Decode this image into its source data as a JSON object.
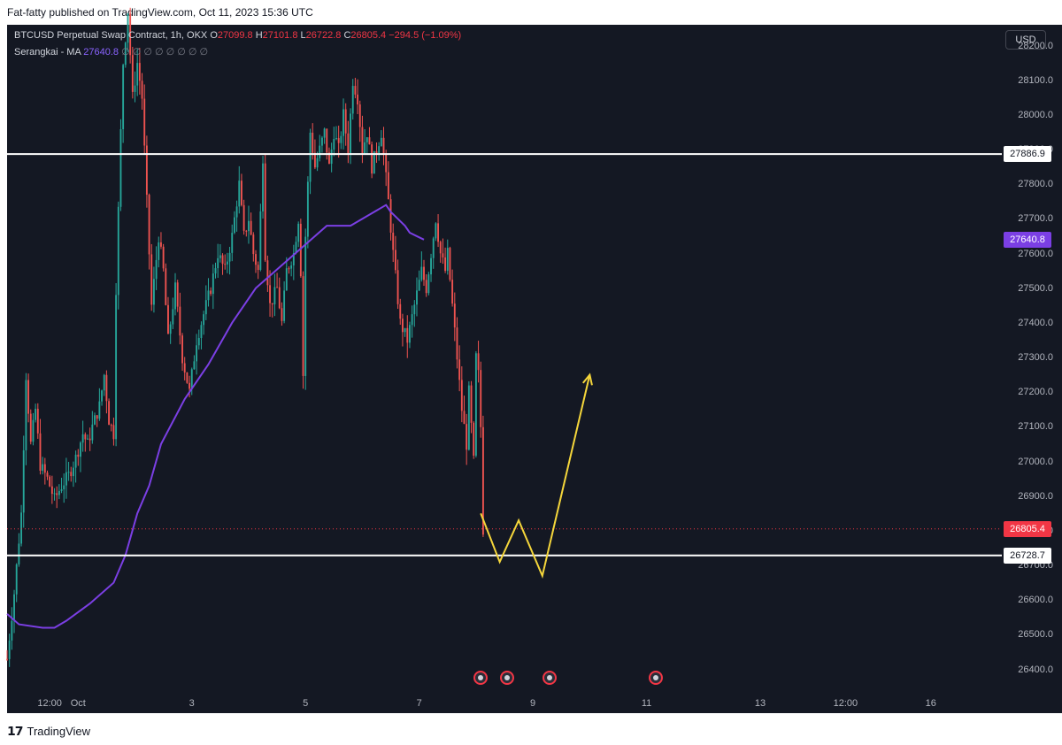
{
  "header": {
    "publish_line": "Fat-fatty published on TradingView.com, Oct 11, 2023 15:36 UTC"
  },
  "legend": {
    "symbol": "BTCUSD Perpetual Swap Contract, 1h, OKX",
    "o_label": "O",
    "o_value": "27099.8",
    "h_label": "H",
    "h_value": "27101.8",
    "l_label": "L",
    "l_value": "26722.8",
    "c_label": "C",
    "c_value": "26805.4",
    "change": "−294.5 (−1.09%)",
    "indicator_name": "Serangkai - MA",
    "indicator_value": "27640.8",
    "indicator_extra": "∅ ∅ ∅ ∅ ∅ ∅ ∅ ∅"
  },
  "currency_button": "USD",
  "footer": {
    "brand": "TradingView"
  },
  "colors": {
    "background": "#141823",
    "up": "#26a69a",
    "down": "#ef5350",
    "ma": "#7b3fe4",
    "projection": "#f5d63b",
    "level": "#ffffff",
    "last_price": "#f23645"
  },
  "chart_data": {
    "type": "line",
    "title": "BTCUSD Perpetual Swap Contract, 1h, OKX",
    "ylim": [
      26340,
      28260
    ],
    "y_ticks": [
      26400,
      26500,
      26600,
      26700,
      26800,
      26900,
      27000,
      27100,
      27200,
      27300,
      27400,
      27500,
      27600,
      27700,
      27800,
      27900,
      28000,
      28100,
      28200
    ],
    "y_tick_labels": [
      "26400.0",
      "26500.0",
      "26600.0",
      "26700.0",
      "26800.0",
      "26900.0",
      "27000.0",
      "27100.0",
      "27200.0",
      "27300.0",
      "27400.0",
      "27500.0",
      "27600.0",
      "27700.0",
      "27800.0",
      "27900.0",
      "28000.0",
      "28100.0",
      "28200.0"
    ],
    "x_tick_labels": [
      {
        "label": "12:00",
        "hour": -12
      },
      {
        "label": "Oct",
        "hour": 0
      },
      {
        "label": "3",
        "hour": 48
      },
      {
        "label": "5",
        "hour": 96
      },
      {
        "label": "7",
        "hour": 144
      },
      {
        "label": "9",
        "hour": 192
      },
      {
        "label": "11",
        "hour": 240
      },
      {
        "label": "13",
        "hour": 288
      },
      {
        "label": "12:00",
        "hour": 324
      },
      {
        "label": "16",
        "hour": 360
      }
    ],
    "x_range_hours": [
      -30,
      390
    ],
    "price_path": [
      [
        -30,
        26430
      ],
      [
        -27,
        26620
      ],
      [
        -24,
        26850
      ],
      [
        -22,
        27250
      ],
      [
        -20,
        27050
      ],
      [
        -18,
        27150
      ],
      [
        -16,
        26990
      ],
      [
        -13,
        26950
      ],
      [
        -10,
        26890
      ],
      [
        -7,
        26930
      ],
      [
        -4,
        26960
      ],
      [
        -1,
        27010
      ],
      [
        2,
        27080
      ],
      [
        4,
        27050
      ],
      [
        6,
        27100
      ],
      [
        9,
        27160
      ],
      [
        11,
        27250
      ],
      [
        13,
        27120
      ],
      [
        15,
        27080
      ],
      [
        16,
        27500
      ],
      [
        18,
        27950
      ],
      [
        19,
        28150
      ],
      [
        21,
        28300
      ],
      [
        23,
        28050
      ],
      [
        25,
        28150
      ],
      [
        27,
        28050
      ],
      [
        29,
        27750
      ],
      [
        31,
        27450
      ],
      [
        34,
        27650
      ],
      [
        36,
        27550
      ],
      [
        38,
        27350
      ],
      [
        41,
        27500
      ],
      [
        44,
        27300
      ],
      [
        47,
        27200
      ],
      [
        50,
        27350
      ],
      [
        52,
        27400
      ],
      [
        56,
        27500
      ],
      [
        59,
        27600
      ],
      [
        62,
        27550
      ],
      [
        65,
        27650
      ],
      [
        68,
        27800
      ],
      [
        70,
        27650
      ],
      [
        72,
        27700
      ],
      [
        74,
        27600
      ],
      [
        76,
        27550
      ],
      [
        78,
        27880
      ],
      [
        79,
        27600
      ],
      [
        81,
        27450
      ],
      [
        84,
        27500
      ],
      [
        86,
        27400
      ],
      [
        88,
        27550
      ],
      [
        91,
        27600
      ],
      [
        93,
        27700
      ],
      [
        94,
        27550
      ],
      [
        95,
        27250
      ],
      [
        96,
        27650
      ],
      [
        98,
        27950
      ],
      [
        100,
        27850
      ],
      [
        102,
        27900
      ],
      [
        104,
        27950
      ],
      [
        106,
        27850
      ],
      [
        108,
        27950
      ],
      [
        110,
        27900
      ],
      [
        112,
        28000
      ],
      [
        114,
        27900
      ],
      [
        116,
        28100
      ],
      [
        118,
        28050
      ],
      [
        120,
        27900
      ],
      [
        122,
        27950
      ],
      [
        124,
        27850
      ],
      [
        126,
        27900
      ],
      [
        128,
        27950
      ],
      [
        131,
        27750
      ],
      [
        133,
        27600
      ],
      [
        136,
        27400
      ],
      [
        139,
        27350
      ],
      [
        142,
        27450
      ],
      [
        145,
        27550
      ],
      [
        147,
        27500
      ],
      [
        149,
        27600
      ],
      [
        151,
        27700
      ],
      [
        153,
        27600
      ],
      [
        155,
        27550
      ],
      [
        156,
        27600
      ],
      [
        158,
        27450
      ],
      [
        160,
        27300
      ],
      [
        162,
        27150
      ],
      [
        164,
        27050
      ],
      [
        165,
        27200
      ],
      [
        166,
        27100
      ],
      [
        167,
        27000
      ],
      [
        168,
        27300
      ],
      [
        169,
        27250
      ],
      [
        170,
        27100
      ],
      [
        171,
        26805
      ]
    ],
    "series": [
      {
        "name": "Serangkai - MA",
        "x": [
          -30,
          -25,
          -15,
          -10,
          -5,
          5,
          15,
          20,
          25,
          30,
          35,
          45,
          55,
          65,
          75,
          85,
          95,
          105,
          115,
          125,
          130,
          132,
          135,
          138,
          140,
          143,
          146
        ],
        "values": [
          26560,
          26530,
          26520,
          26520,
          26540,
          26590,
          26650,
          26730,
          26850,
          26930,
          27050,
          27180,
          27280,
          27400,
          27500,
          27560,
          27620,
          27680,
          27680,
          27720,
          27740,
          27720,
          27700,
          27680,
          27660,
          27650,
          27640
        ]
      }
    ],
    "horizontal_levels": [
      {
        "value": 27886.9,
        "label": "27886.9"
      },
      {
        "value": 26728.7,
        "label": "26728.7"
      }
    ],
    "last_price": {
      "value": 26805.4,
      "label": "26805.4"
    },
    "ma_last": {
      "value": 27640.8,
      "label": "27640.8"
    },
    "projection_path": [
      [
        170,
        26850
      ],
      [
        178,
        26710
      ],
      [
        186,
        26830
      ],
      [
        196,
        26670
      ],
      [
        216,
        27250
      ]
    ],
    "event_markers_hours": [
      170,
      181,
      199,
      244
    ]
  }
}
